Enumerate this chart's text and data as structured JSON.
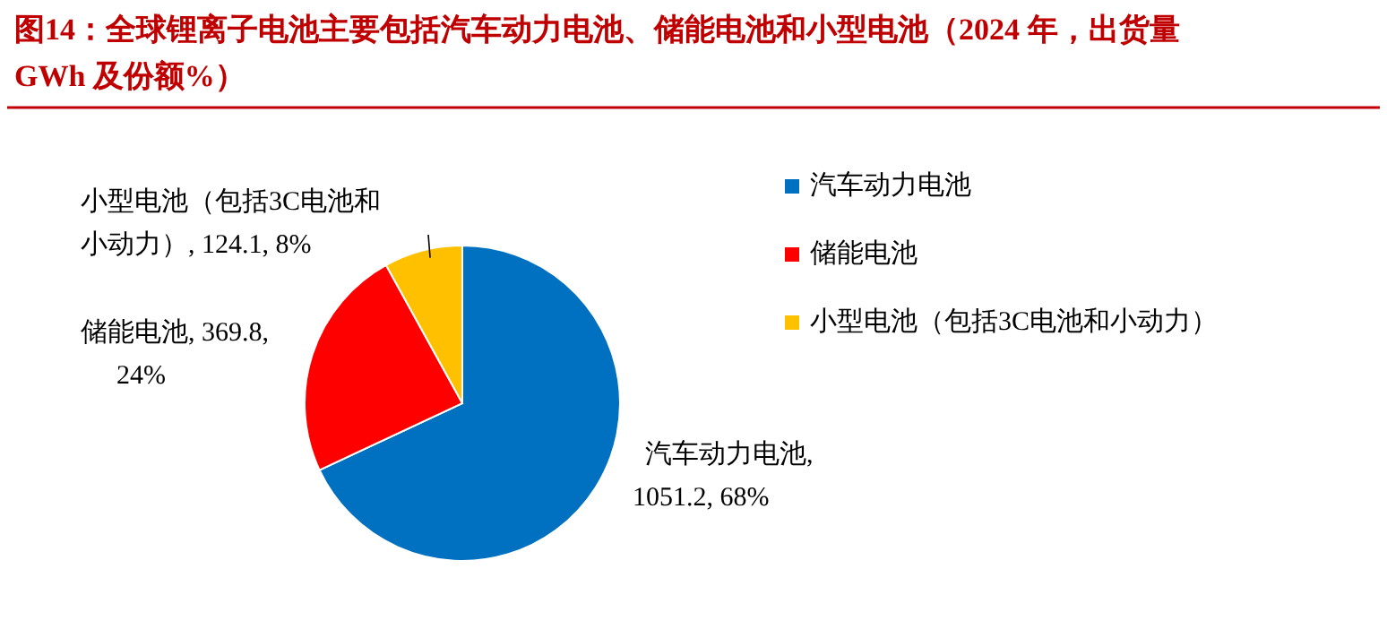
{
  "chart_data": {
    "type": "pie",
    "title": "图14：全球锂离子电池主要包括汽车动力电池、储能电池和小型电池（2024 年，出货量 GWh 及份额%）",
    "categories": [
      "汽车动力电池",
      "储能电池",
      "小型电池（包括3C电池和小动力）"
    ],
    "values": [
      1051.2,
      369.8,
      124.1
    ],
    "colors": [
      "#0070c0",
      "#ff0000",
      "#ffc000"
    ],
    "value_labels": [
      "汽车动力电池, 1051.2, 68%",
      "储能电池, 369.8, 24%",
      "小型电池（包括3C电池和小动力）, 124.1, 8%"
    ],
    "legend": "right"
  }
}
